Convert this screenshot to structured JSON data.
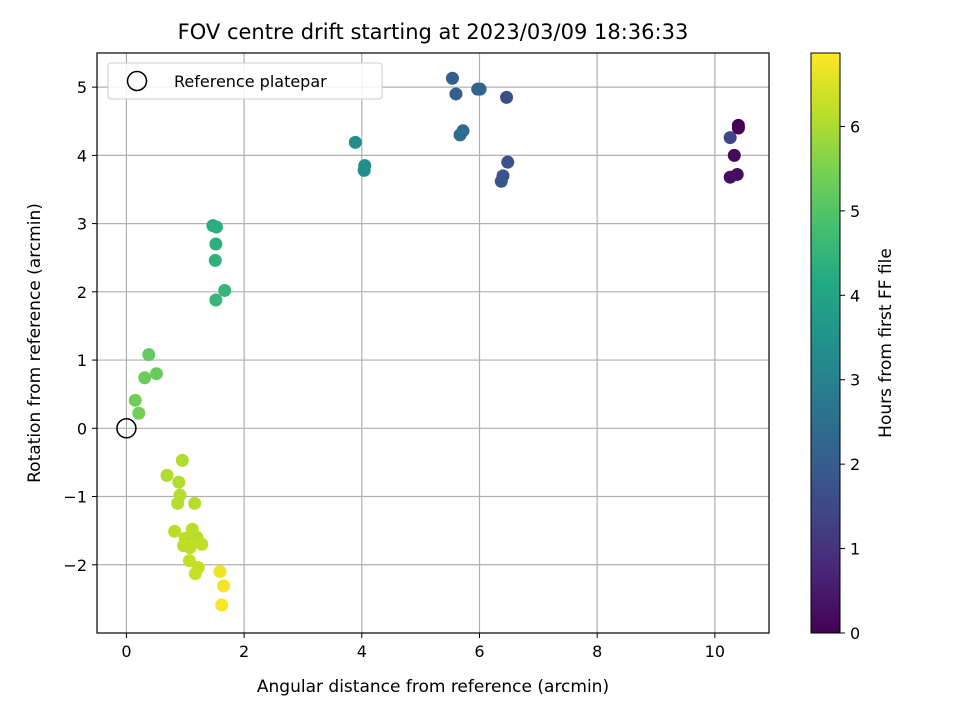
{
  "chart_data": {
    "type": "scatter",
    "title": "FOV centre drift starting at 2023/03/09 18:36:33",
    "xlabel": "Angular distance from reference (arcmin)",
    "ylabel": "Rotation from reference (arcmin)",
    "xlim": [
      -0.5,
      10.92
    ],
    "ylim": [
      -3.0,
      5.5
    ],
    "xticks": [
      0,
      2,
      4,
      6,
      8,
      10
    ],
    "yticks": [
      -2,
      -1,
      0,
      1,
      2,
      3,
      4,
      5
    ],
    "xtick_labels": [
      "0",
      "2",
      "4",
      "6",
      "8",
      "10"
    ],
    "ytick_labels": [
      "−2",
      "−1",
      "0",
      "1",
      "2",
      "3",
      "4",
      "5"
    ],
    "grid": true,
    "legend": {
      "placement": "top-left",
      "entries": [
        "Reference platepar"
      ]
    },
    "reference_point": {
      "name": "Reference platepar",
      "x": 0,
      "y": 0
    },
    "colorbar": {
      "label": "Hours from first FF file",
      "range": [
        0,
        6.87
      ],
      "ticks": [
        0,
        1,
        2,
        3,
        4,
        5,
        6
      ],
      "tick_labels": [
        "0",
        "1",
        "2",
        "3",
        "4",
        "5",
        "6"
      ],
      "colormap": "viridis"
    },
    "points": [
      {
        "x": 10.4,
        "y": 4.44,
        "c": 0.0
      },
      {
        "x": 10.4,
        "y": 4.4,
        "c": 0.05
      },
      {
        "x": 10.33,
        "y": 4.0,
        "c": 0.15
      },
      {
        "x": 10.38,
        "y": 3.72,
        "c": 0.2
      },
      {
        "x": 10.26,
        "y": 3.68,
        "c": 0.25
      },
      {
        "x": 10.26,
        "y": 4.26,
        "c": 1.4
      },
      {
        "x": 6.46,
        "y": 4.85,
        "c": 1.65
      },
      {
        "x": 6.48,
        "y": 3.9,
        "c": 1.7
      },
      {
        "x": 6.4,
        "y": 3.7,
        "c": 1.75
      },
      {
        "x": 6.37,
        "y": 3.62,
        "c": 1.8
      },
      {
        "x": 5.54,
        "y": 5.13,
        "c": 2.05
      },
      {
        "x": 5.6,
        "y": 4.9,
        "c": 2.1
      },
      {
        "x": 5.97,
        "y": 4.97,
        "c": 2.15
      },
      {
        "x": 6.01,
        "y": 4.97,
        "c": 2.2
      },
      {
        "x": 5.72,
        "y": 4.36,
        "c": 2.4
      },
      {
        "x": 5.67,
        "y": 4.3,
        "c": 2.45
      },
      {
        "x": 3.89,
        "y": 4.19,
        "c": 3.3
      },
      {
        "x": 4.05,
        "y": 3.85,
        "c": 3.35
      },
      {
        "x": 4.04,
        "y": 3.78,
        "c": 3.4
      },
      {
        "x": 1.47,
        "y": 2.97,
        "c": 4.25
      },
      {
        "x": 1.53,
        "y": 2.95,
        "c": 4.3
      },
      {
        "x": 1.52,
        "y": 2.7,
        "c": 4.35
      },
      {
        "x": 1.51,
        "y": 2.46,
        "c": 4.4
      },
      {
        "x": 1.67,
        "y": 2.02,
        "c": 4.5
      },
      {
        "x": 1.52,
        "y": 1.88,
        "c": 4.55
      },
      {
        "x": 0.38,
        "y": 1.08,
        "c": 5.2
      },
      {
        "x": 0.51,
        "y": 0.8,
        "c": 5.25
      },
      {
        "x": 0.31,
        "y": 0.74,
        "c": 5.3
      },
      {
        "x": 0.15,
        "y": 0.41,
        "c": 5.35
      },
      {
        "x": 0.21,
        "y": 0.22,
        "c": 5.4
      },
      {
        "x": 0.69,
        "y": -0.69,
        "c": 6.05
      },
      {
        "x": 0.95,
        "y": -0.47,
        "c": 6.05
      },
      {
        "x": 0.89,
        "y": -0.79,
        "c": 6.05
      },
      {
        "x": 0.91,
        "y": -0.98,
        "c": 6.1
      },
      {
        "x": 0.87,
        "y": -1.1,
        "c": 6.1
      },
      {
        "x": 1.16,
        "y": -1.1,
        "c": 6.1
      },
      {
        "x": 0.82,
        "y": -1.51,
        "c": 6.15
      },
      {
        "x": 1.12,
        "y": -1.48,
        "c": 6.15
      },
      {
        "x": 1.0,
        "y": -1.61,
        "c": 6.15
      },
      {
        "x": 1.2,
        "y": -1.6,
        "c": 6.15
      },
      {
        "x": 0.97,
        "y": -1.72,
        "c": 6.2
      },
      {
        "x": 1.08,
        "y": -1.75,
        "c": 6.2
      },
      {
        "x": 1.28,
        "y": -1.7,
        "c": 6.2
      },
      {
        "x": 1.07,
        "y": -1.94,
        "c": 6.25
      },
      {
        "x": 1.22,
        "y": -2.04,
        "c": 6.25
      },
      {
        "x": 1.17,
        "y": -2.13,
        "c": 6.3
      },
      {
        "x": 1.59,
        "y": -2.1,
        "c": 6.7
      },
      {
        "x": 1.65,
        "y": -2.31,
        "c": 6.75
      },
      {
        "x": 1.62,
        "y": -2.59,
        "c": 6.8
      }
    ]
  }
}
